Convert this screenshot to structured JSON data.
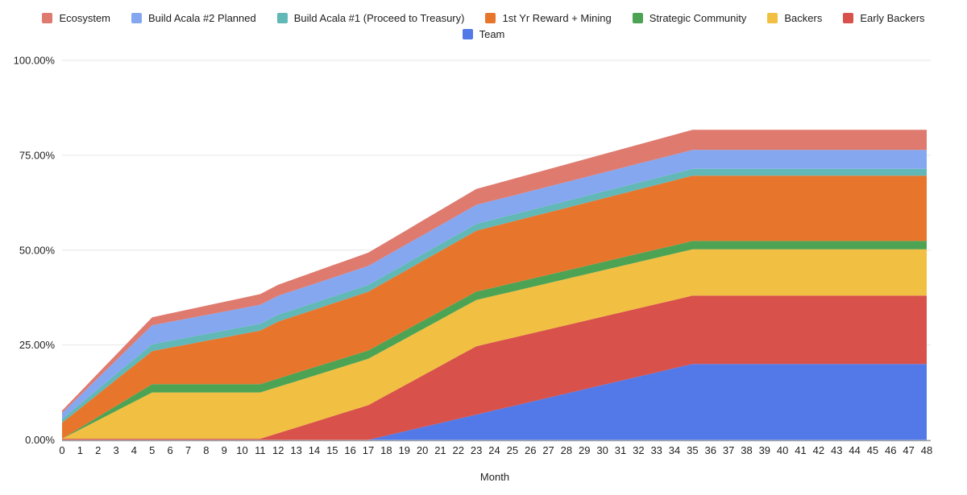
{
  "chart_data": {
    "type": "area",
    "stacked": true,
    "title": "",
    "xlabel": "Month",
    "ylim": [
      0,
      100
    ],
    "grid": true,
    "legend_position": "top",
    "x": [
      0,
      1,
      2,
      3,
      4,
      5,
      6,
      7,
      8,
      9,
      10,
      11,
      12,
      13,
      14,
      15,
      16,
      17,
      18,
      19,
      20,
      21,
      22,
      23,
      24,
      25,
      26,
      27,
      28,
      29,
      30,
      31,
      32,
      33,
      34,
      35,
      36,
      37,
      38,
      39,
      40,
      41,
      42,
      43,
      44,
      45,
      46,
      47,
      48
    ],
    "y_ticks": [
      {
        "value": 0,
        "label": "0.00%"
      },
      {
        "value": 25,
        "label": "25.00%"
      },
      {
        "value": 50,
        "label": "50.00%"
      },
      {
        "value": 75,
        "label": "75.00%"
      },
      {
        "value": 100,
        "label": "100.00%"
      }
    ],
    "legend_rows": [
      [
        "ecosystem",
        "build-acala-2-planned",
        "build-acala-1-treasury",
        "first-yr-reward-mining",
        "strategic-community",
        "backers",
        "early-backers"
      ],
      [
        "team"
      ]
    ],
    "series": [
      {
        "id": "team",
        "name": "Team",
        "color": "#5279e7",
        "values": [
          0,
          0,
          0,
          0,
          0,
          0,
          0,
          0,
          0,
          0,
          0,
          0,
          0,
          0,
          0,
          0,
          0,
          0,
          1.11,
          2.22,
          3.33,
          4.44,
          5.56,
          6.67,
          7.78,
          8.89,
          10,
          11.11,
          12.22,
          13.33,
          14.44,
          15.56,
          16.67,
          17.78,
          18.89,
          20,
          20,
          20,
          20,
          20,
          20,
          20,
          20,
          20,
          20,
          20,
          20,
          20,
          20
        ]
      },
      {
        "id": "early-backers",
        "name": "Early Backers",
        "color": "#d8514a",
        "values": [
          0.3,
          0.3,
          0.3,
          0.3,
          0.3,
          0.3,
          0.3,
          0.3,
          0.3,
          0.3,
          0.3,
          0.3,
          1.78,
          3.25,
          4.73,
          6.2,
          7.68,
          9.15,
          10.63,
          12.1,
          13.58,
          15.05,
          16.53,
          18,
          18,
          18,
          18,
          18,
          18,
          18,
          18,
          18,
          18,
          18,
          18,
          18,
          18,
          18,
          18,
          18,
          18,
          18,
          18,
          18,
          18,
          18,
          18,
          18,
          18
        ]
      },
      {
        "id": "backers",
        "name": "Backers",
        "color": "#f1bf42",
        "values": [
          0,
          2.44,
          4.88,
          7.32,
          9.76,
          12.2,
          12.2,
          12.2,
          12.2,
          12.2,
          12.2,
          12.2,
          12.2,
          12.2,
          12.2,
          12.2,
          12.2,
          12.2,
          12.2,
          12.2,
          12.2,
          12.2,
          12.2,
          12.2,
          12.2,
          12.2,
          12.2,
          12.2,
          12.2,
          12.2,
          12.2,
          12.2,
          12.2,
          12.2,
          12.2,
          12.2,
          12.2,
          12.2,
          12.2,
          12.2,
          12.2,
          12.2,
          12.2,
          12.2,
          12.2,
          12.2,
          12.2,
          12.2,
          12.2
        ]
      },
      {
        "id": "strategic-community",
        "name": "Strategic Community",
        "color": "#4da354",
        "values": [
          0,
          0.44,
          0.88,
          1.32,
          1.76,
          2.2,
          2.2,
          2.2,
          2.2,
          2.2,
          2.2,
          2.2,
          2.2,
          2.2,
          2.2,
          2.2,
          2.2,
          2.2,
          2.2,
          2.2,
          2.2,
          2.2,
          2.2,
          2.2,
          2.2,
          2.2,
          2.2,
          2.2,
          2.2,
          2.2,
          2.2,
          2.2,
          2.2,
          2.2,
          2.2,
          2.2,
          2.2,
          2.2,
          2.2,
          2.2,
          2.2,
          2.2,
          2.2,
          2.2,
          2.2,
          2.2,
          2.2,
          2.2,
          2.2
        ]
      },
      {
        "id": "first-yr-reward-mining",
        "name": "1st Yr Reward + Mining",
        "color": "#e8752c",
        "values": [
          4.2,
          5.1,
          6,
          6.9,
          7.8,
          8.7,
          9.6,
          10.5,
          11.4,
          12.3,
          13.2,
          14.1,
          15,
          15.1,
          15.19,
          15.29,
          15.38,
          15.48,
          15.57,
          15.67,
          15.77,
          15.86,
          15.96,
          16.05,
          16.15,
          16.24,
          16.34,
          16.43,
          16.53,
          16.63,
          16.72,
          16.82,
          16.91,
          17.01,
          17.1,
          17.2,
          17.2,
          17.2,
          17.2,
          17.2,
          17.2,
          17.2,
          17.2,
          17.2,
          17.2,
          17.2,
          17.2,
          17.2,
          17.2
        ]
      },
      {
        "id": "build-acala-1-treasury",
        "name": "Build Acala #1 (Proceed to Treasury)",
        "color": "#61b8b6",
        "values": [
          1,
          1.16,
          1.32,
          1.48,
          1.64,
          1.8,
          1.8,
          1.8,
          1.8,
          1.8,
          1.8,
          1.8,
          1.8,
          1.8,
          1.8,
          1.8,
          1.8,
          1.8,
          1.8,
          1.8,
          1.8,
          1.8,
          1.8,
          1.8,
          1.8,
          1.8,
          1.8,
          1.8,
          1.8,
          1.8,
          1.8,
          1.8,
          1.8,
          1.8,
          1.8,
          1.8,
          1.8,
          1.8,
          1.8,
          1.8,
          1.8,
          1.8,
          1.8,
          1.8,
          1.8,
          1.8,
          1.8,
          1.8,
          1.8
        ]
      },
      {
        "id": "build-acala-2-planned",
        "name": "Build Acala #2 Planned",
        "color": "#85a7f0",
        "values": [
          1.6,
          2.28,
          2.96,
          3.64,
          4.32,
          5,
          5,
          5,
          5,
          5,
          5,
          5,
          5,
          5,
          5,
          5,
          5,
          5,
          5,
          5,
          5,
          5,
          5,
          5,
          5,
          5,
          5,
          5,
          5,
          5,
          5,
          5,
          5,
          5,
          5,
          5,
          5,
          5,
          5,
          5,
          5,
          5,
          5,
          5,
          5,
          5,
          5,
          5,
          5
        ]
      },
      {
        "id": "ecosystem",
        "name": "Ecosystem",
        "color": "#df7a6e",
        "values": [
          0.6,
          0.9,
          1.2,
          1.5,
          1.8,
          2.1,
          2.22,
          2.33,
          2.45,
          2.57,
          2.68,
          2.8,
          2.92,
          3.03,
          3.15,
          3.27,
          3.38,
          3.5,
          3.62,
          3.73,
          3.85,
          3.97,
          4.08,
          4.2,
          4.29,
          4.38,
          4.48,
          4.57,
          4.66,
          4.75,
          4.84,
          4.94,
          5.03,
          5.12,
          5.21,
          5.3,
          5.3,
          5.3,
          5.3,
          5.3,
          5.3,
          5.3,
          5.3,
          5.3,
          5.3,
          5.3,
          5.3,
          5.3,
          5.3
        ]
      }
    ]
  }
}
